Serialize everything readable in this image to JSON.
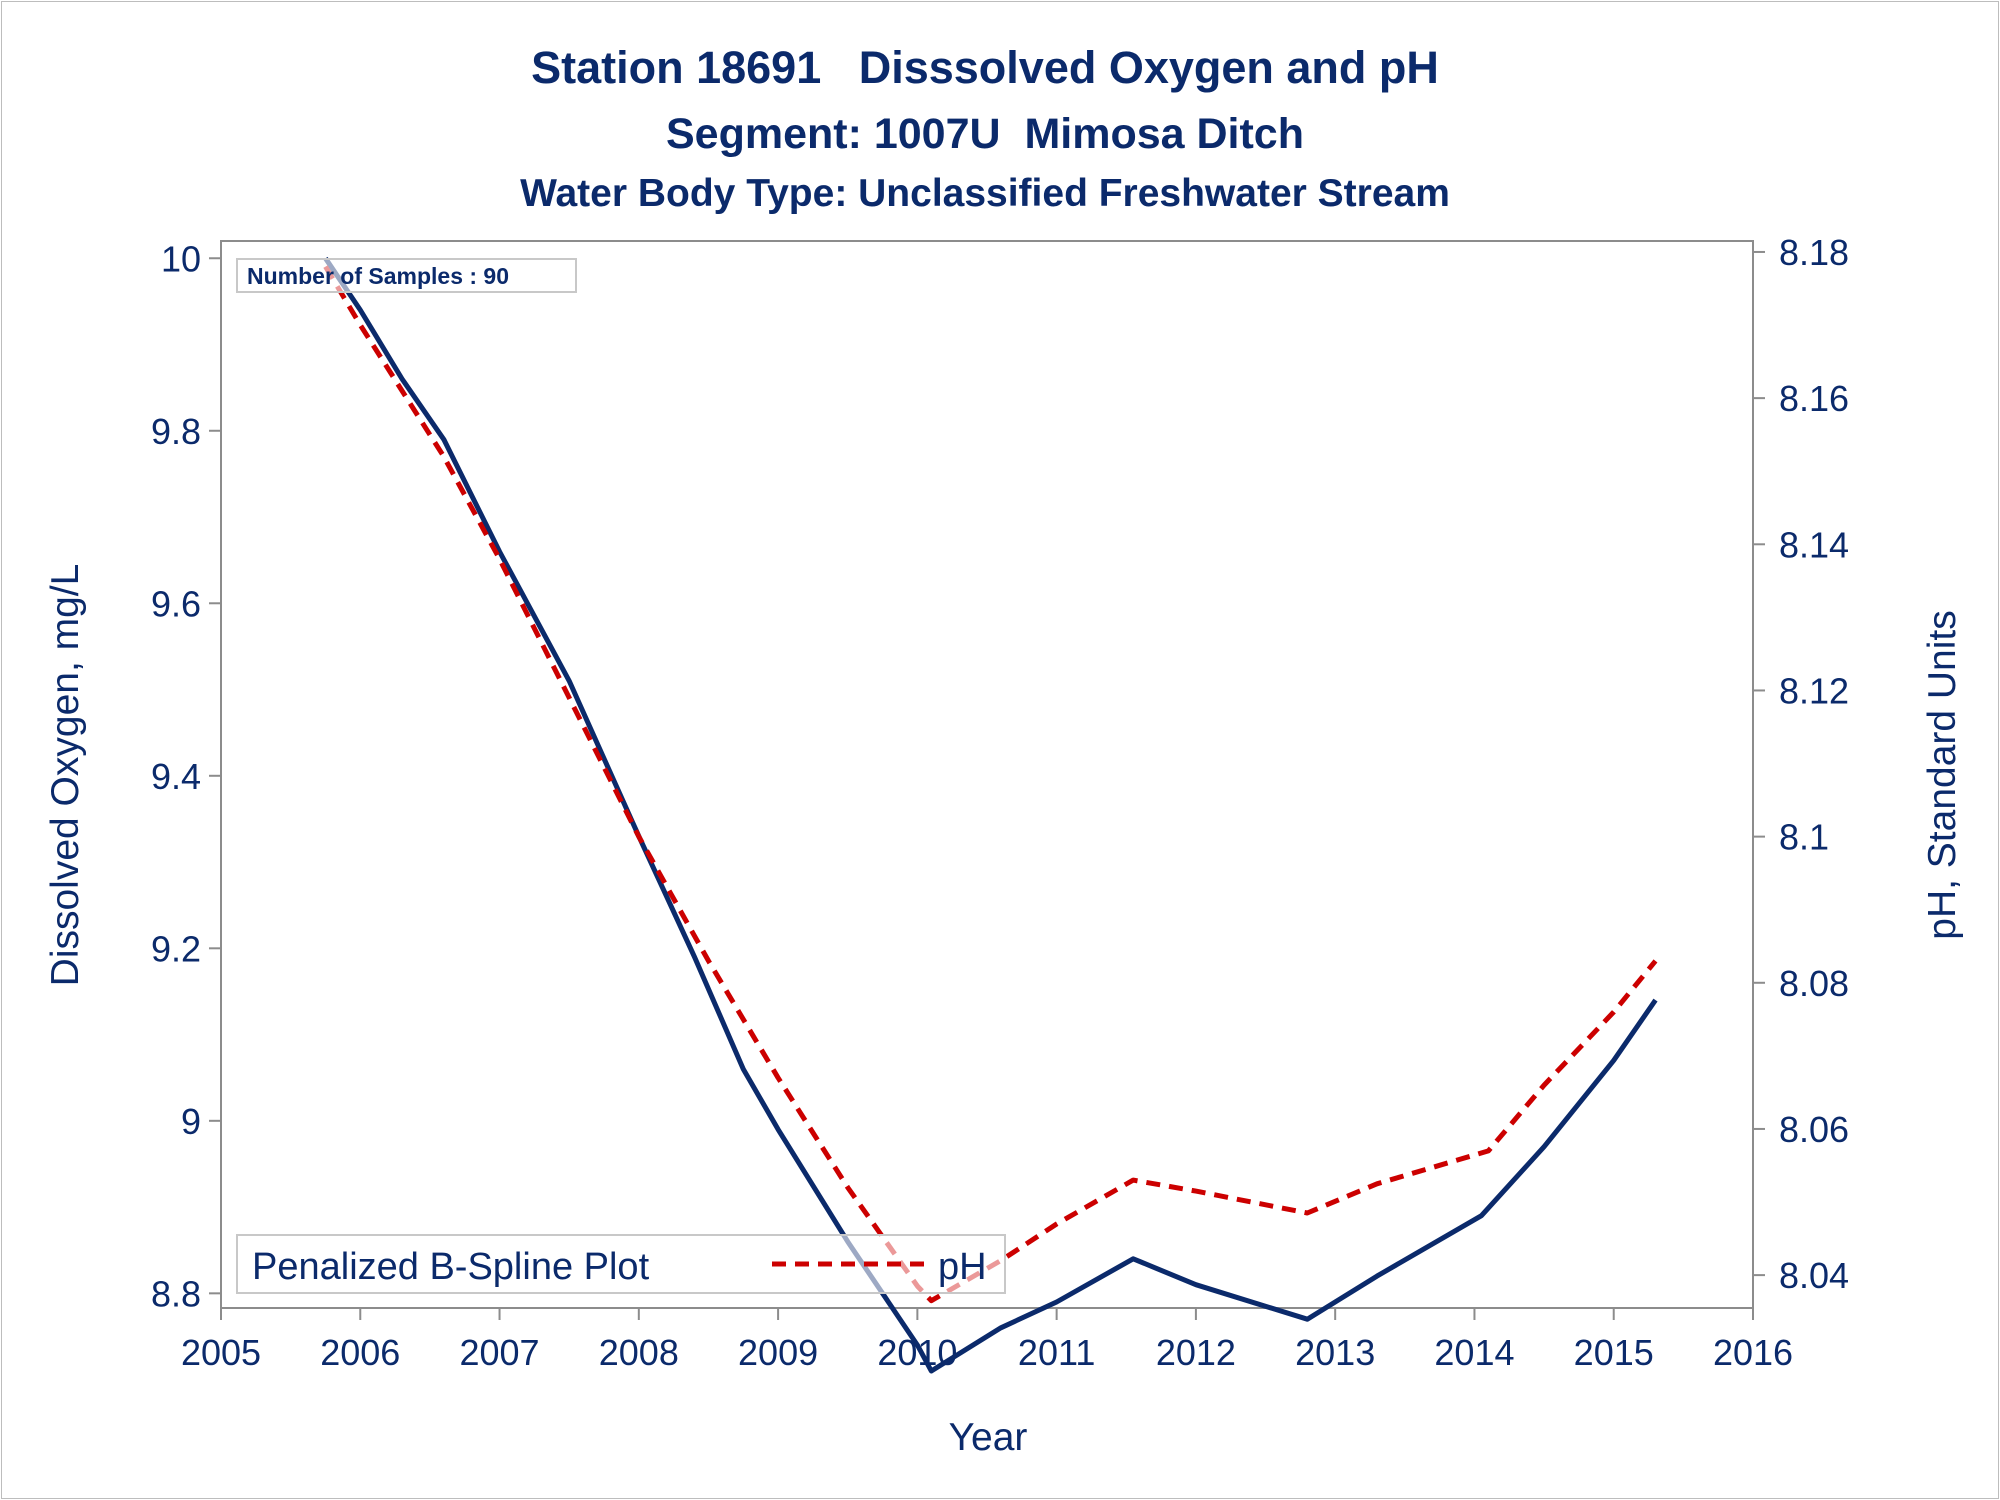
{
  "chart_data": {
    "type": "line",
    "title": "Station 18691   Disssolved Oxygen and pH",
    "subtitle": "Segment: 1007U  Mimosa Ditch",
    "subtitle2": "Water Body Type: Unclassified Freshwater Stream",
    "xlabel": "Year",
    "ylabel": "Dissolved Oxygen, mg/L",
    "y2label": "pH, Standard Units",
    "xlim": [
      2005,
      2016
    ],
    "ylim": [
      8.783,
      10.02
    ],
    "y2lim": [
      8.0355,
      8.1815
    ],
    "xticks": [
      "2005",
      "2006",
      "2007",
      "2008",
      "2009",
      "2010",
      "2011",
      "2012",
      "2013",
      "2014",
      "2015",
      "2016"
    ],
    "yticks": [
      "8.8",
      "9",
      "9.2",
      "9.4",
      "9.6",
      "9.8",
      "10"
    ],
    "y2ticks": [
      "8.04",
      "8.06",
      "8.08",
      "8.1",
      "8.12",
      "8.14",
      "8.16",
      "8.18"
    ],
    "grid": false,
    "colors": {
      "text": "#0b2a6b",
      "do_line": "#0b2a6b",
      "ph_line": "#cc0000",
      "axis": "#8c8c8c",
      "box": "#c8c8c8"
    },
    "inset_text": "Number of Samples : 90",
    "legend": {
      "placement": "bottom-left",
      "title": "Penalized B-Spline Plot",
      "entries": [
        "pH"
      ]
    },
    "series": [
      {
        "axis": "left",
        "color": "#0b2a6b",
        "style": "solid",
        "x": [
          2005.75,
          2006.0,
          2006.3,
          2006.6,
          2007.0,
          2007.5,
          2008.0,
          2008.4,
          2008.75,
          2009.0,
          2009.5,
          2010.0,
          2010.1,
          2010.6,
          2011.0,
          2011.55,
          2012.0,
          2012.8,
          2013.3,
          2014.05,
          2014.5,
          2015.0,
          2015.3
        ],
        "y": [
          10.0,
          9.94,
          9.86,
          9.79,
          9.66,
          9.51,
          9.33,
          9.19,
          9.06,
          8.99,
          8.86,
          8.74,
          8.71,
          8.76,
          8.79,
          8.84,
          8.81,
          8.77,
          8.82,
          8.89,
          8.97,
          9.07,
          9.14
        ]
      },
      {
        "axis": "right",
        "name": "pH",
        "color": "#cc0000",
        "style": "dashed",
        "x": [
          2005.75,
          2006.0,
          2006.6,
          2007.0,
          2007.5,
          2008.0,
          2008.5,
          2009.0,
          2009.5,
          2010.0,
          2010.1,
          2010.6,
          2011.0,
          2011.55,
          2012.0,
          2012.8,
          2013.3,
          2014.1,
          2014.5,
          2015.0,
          2015.3
        ],
        "y": [
          8.178,
          8.17,
          8.152,
          8.138,
          8.119,
          8.1,
          8.083,
          8.067,
          8.052,
          8.0385,
          8.0365,
          8.042,
          8.047,
          8.053,
          8.0515,
          8.0485,
          8.0525,
          8.057,
          8.066,
          8.076,
          8.083
        ]
      }
    ]
  }
}
